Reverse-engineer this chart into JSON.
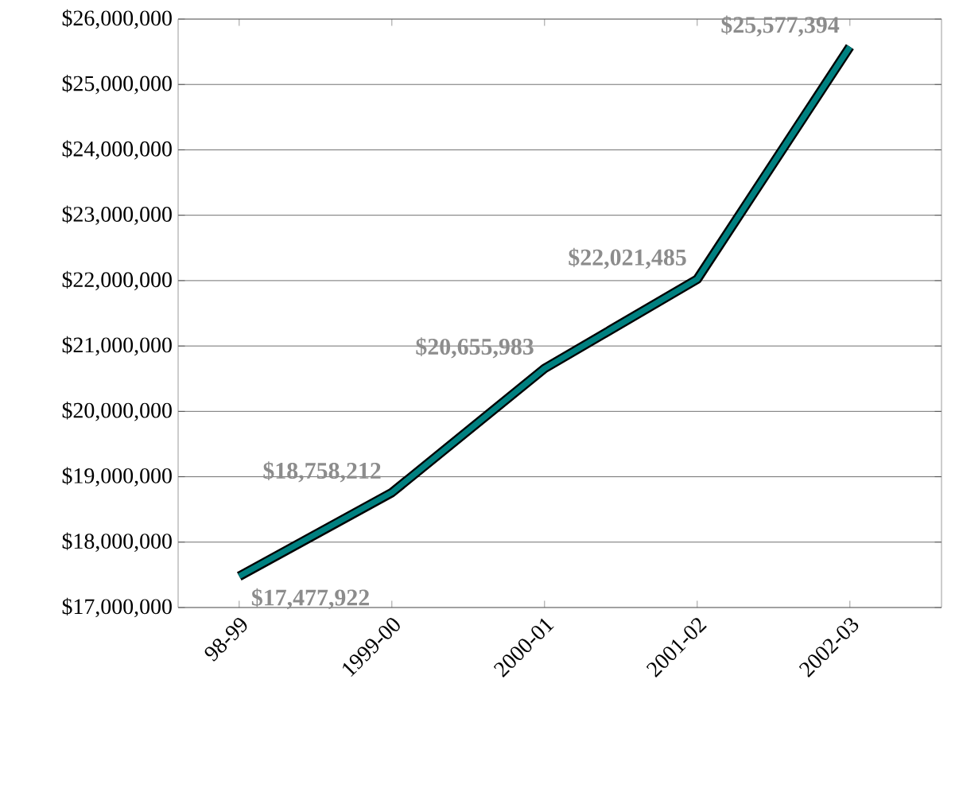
{
  "chart_data": {
    "type": "line",
    "categories": [
      "98-99",
      "1999-00",
      "2000-01",
      "2001-02",
      "2002-03"
    ],
    "series": [
      {
        "color": "#008080",
        "values": [
          17477922,
          18758212,
          20655983,
          22021485,
          25577394
        ],
        "value_labels": [
          "$17,477,922",
          "$18,758,212",
          "$20,655,983",
          "$22,021,485",
          "$25,577,394"
        ]
      }
    ],
    "ylim": [
      17000000,
      26000000
    ],
    "yticks": [
      {
        "value": 17000000,
        "label": "$17,000,000"
      },
      {
        "value": 18000000,
        "label": "$18,000,000"
      },
      {
        "value": 19000000,
        "label": "$19,000,000"
      },
      {
        "value": 20000000,
        "label": "$20,000,000"
      },
      {
        "value": 21000000,
        "label": "$21,000,000"
      },
      {
        "value": 22000000,
        "label": "$22,000,000"
      },
      {
        "value": 23000000,
        "label": "$23,000,000"
      },
      {
        "value": 24000000,
        "label": "$24,000,000"
      },
      {
        "value": 25000000,
        "label": "$25,000,000"
      },
      {
        "value": 26000000,
        "label": "$26,000,000"
      }
    ],
    "grid": "y",
    "marker": "none",
    "line_style": "solid"
  }
}
